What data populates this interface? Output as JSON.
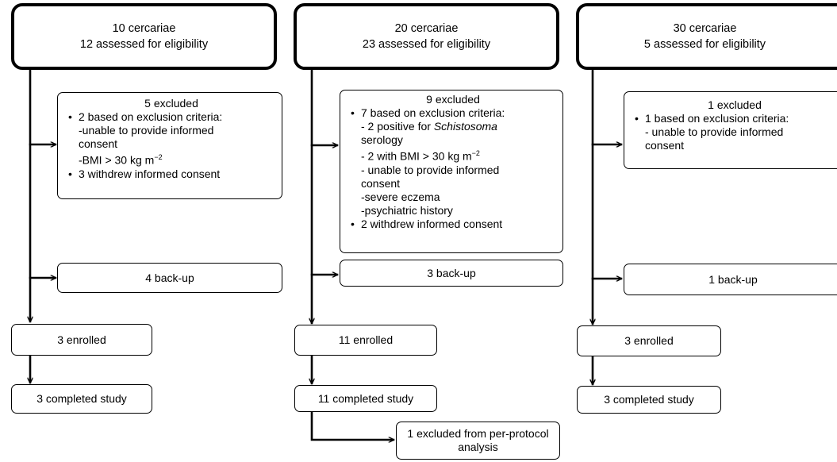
{
  "columns": [
    {
      "header": {
        "dose": "10 cercariae",
        "assessed": "12 assessed for eligibility"
      },
      "excluded": {
        "title": "5 excluded",
        "lines": [
          {
            "bullet": true,
            "text": "2 based on exclusion criteria:"
          },
          {
            "bullet": false,
            "text": "-unable to provide informed"
          },
          {
            "bullet": false,
            "text": "consent"
          },
          {
            "bullet": false,
            "text": "-BMI > 30 kg m",
            "sup": "−2"
          },
          {
            "bullet": true,
            "text": "3 withdrew informed consent"
          }
        ]
      },
      "backup": "4 back-up",
      "enrolled": "3 enrolled",
      "completed": "3 completed study"
    },
    {
      "header": {
        "dose": "20 cercariae",
        "assessed": "23 assessed for eligibility"
      },
      "excluded": {
        "title": "9 excluded",
        "lines": [
          {
            "bullet": true,
            "text": "7 based on exclusion criteria:"
          },
          {
            "bullet": false,
            "text": "- 2 positive for ",
            "italic": "Schistosoma"
          },
          {
            "bullet": false,
            "text": "serology"
          },
          {
            "bullet": false,
            "text": "- 2 with BMI > 30 kg m",
            "sup": "−2"
          },
          {
            "bullet": false,
            "text": "- unable to provide informed"
          },
          {
            "bullet": false,
            "text": "consent"
          },
          {
            "bullet": false,
            "text": "-severe eczema"
          },
          {
            "bullet": false,
            "text": "-psychiatric history"
          },
          {
            "bullet": true,
            "text": "2 withdrew informed consent"
          }
        ]
      },
      "backup": "3 back-up",
      "enrolled": "11 enrolled",
      "completed": "11 completed study",
      "protocol_excluded": "1 excluded from per-protocol analysis"
    },
    {
      "header": {
        "dose": "30 cercariae",
        "assessed": "5 assessed for eligibility"
      },
      "excluded": {
        "title": "1 excluded",
        "lines": [
          {
            "bullet": true,
            "text": "1 based on exclusion criteria:"
          },
          {
            "bullet": false,
            "text": "- unable to provide informed"
          },
          {
            "bullet": false,
            "text": "consent"
          }
        ]
      },
      "backup": "1 back-up",
      "enrolled": "3 enrolled",
      "completed": "3 completed study"
    }
  ]
}
